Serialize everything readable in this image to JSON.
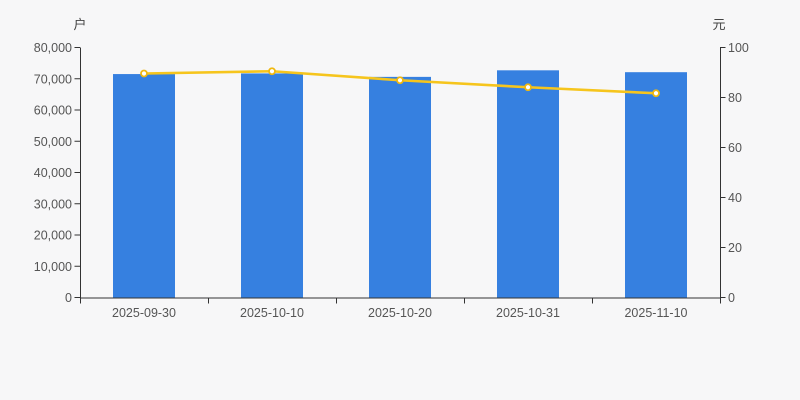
{
  "chart_data": {
    "type": "bar",
    "title": "",
    "categories": [
      "2025-09-30",
      "2025-10-10",
      "2025-10-20",
      "2025-10-31",
      "2025-11-10"
    ],
    "series": [
      {
        "name": "bar-series",
        "type": "bar",
        "axis": "left",
        "color": "#3680e0",
        "values": [
          71500,
          71700,
          70600,
          72700,
          72100
        ]
      },
      {
        "name": "line-series",
        "type": "line",
        "axis": "right",
        "color": "#f6c51d",
        "marker_fill": "#ffffff",
        "marker_stroke": "#f0b810",
        "values": [
          89.6,
          90.5,
          86.9,
          84.1,
          81.7
        ]
      }
    ],
    "left_axis": {
      "label": "户",
      "min": 0,
      "max": 80000,
      "tick_step": 10000,
      "ticks": [
        "0",
        "10,000",
        "20,000",
        "30,000",
        "40,000",
        "50,000",
        "60,000",
        "70,000",
        "80,000"
      ]
    },
    "right_axis": {
      "label": "元",
      "min": 0,
      "max": 100,
      "tick_step": 20,
      "ticks": [
        "0",
        "20",
        "40",
        "60",
        "80",
        "100"
      ]
    },
    "grid": "off",
    "legend": "none",
    "colors": {
      "background": "#f7f7f8",
      "axis_line": "#333333",
      "tick_text": "#555555",
      "axis_title_text": "#444444"
    }
  }
}
